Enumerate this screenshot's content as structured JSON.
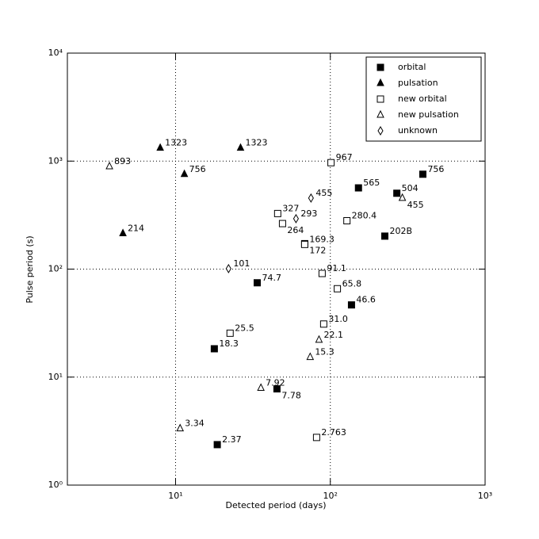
{
  "chart_data": {
    "type": "scatter",
    "xlabel": "Detected period (days)",
    "ylabel": "Pulse period (s)",
    "xscale": "log",
    "yscale": "log",
    "xlim": [
      2,
      1000
    ],
    "ylim": [
      1,
      10000
    ],
    "xticks": [
      {
        "value": 10,
        "label": "10¹"
      },
      {
        "value": 100,
        "label": "10²"
      },
      {
        "value": 1000,
        "label": "10³"
      }
    ],
    "yticks": [
      {
        "value": 1,
        "label": "10⁰"
      },
      {
        "value": 10,
        "label": "10¹"
      },
      {
        "value": 100,
        "label": "10²"
      },
      {
        "value": 1000,
        "label": "10³"
      },
      {
        "value": 10000,
        "label": "10⁴"
      }
    ],
    "grid": true,
    "legend": "upper right",
    "series": [
      {
        "name": "orbital",
        "color": "#000000",
        "marker": "square",
        "filled": true,
        "x": [
          18.6,
          17.8,
          45.2,
          33.7,
          68.3,
          137,
          152,
          269,
          396,
          225
        ],
        "values": [
          2.37,
          18.3,
          7.78,
          74.7,
          172,
          46.6,
          565,
          504,
          756,
          202
        ],
        "value_labels": [
          "2.37",
          "18.3",
          "7.78",
          "74.7",
          "172",
          "46.6",
          "565",
          "504",
          "756",
          "202B"
        ]
      },
      {
        "name": "pulsation",
        "color": "#000000",
        "marker": "triangle",
        "filled": true,
        "x": [
          7.96,
          26.3,
          11.4,
          4.57
        ],
        "values": [
          1323,
          1323,
          756,
          214
        ]
      },
      {
        "name": "new orbital",
        "color": "#000000",
        "marker": "square",
        "filled": false,
        "x": [
          101,
          45.7,
          49.1,
          128,
          68.3,
          88.5,
          111,
          90.6,
          22.5,
          81.5
        ],
        "values": [
          967,
          327,
          264,
          280.4,
          169.3,
          91.1,
          65.8,
          31.0,
          25.5,
          2.763
        ],
        "value_labels": [
          "967",
          "327",
          "264",
          "280.4",
          "169.3",
          "91.1",
          "65.8",
          "31.0",
          "25.5",
          "2.763"
        ]
      },
      {
        "name": "new pulsation",
        "color": "#000000",
        "marker": "triangle",
        "filled": false,
        "x": [
          3.74,
          292,
          84.5,
          74.1,
          35.6,
          10.7
        ],
        "values": [
          893,
          455,
          22.1,
          15.3,
          7.92,
          3.34
        ]
      },
      {
        "name": "unknown",
        "color": "#000000",
        "marker": "diamond",
        "filled": false,
        "x": [
          75,
          60,
          22
        ],
        "values": [
          455,
          293,
          101
        ]
      }
    ]
  }
}
